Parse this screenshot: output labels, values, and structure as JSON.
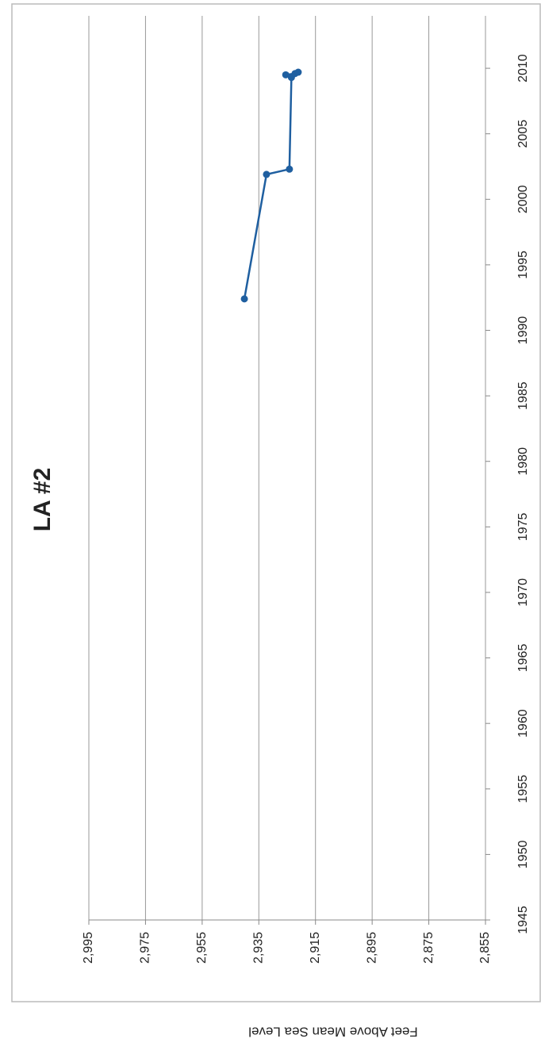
{
  "chart_data": {
    "type": "line",
    "title": "LA #2",
    "y_label": "Feet Above Mean Sea Level",
    "x": [
      1992.4,
      2001.9,
      2002.3,
      2009.3,
      2009.5,
      2009.6,
      2009.7
    ],
    "series": [
      {
        "name": "LA #2",
        "color": "#1f5fa0",
        "values": [
          2940.1,
          2932.3,
          2924.2,
          2923.5,
          2925.5,
          2922.2,
          2921.1
        ]
      }
    ],
    "xlim": [
      1945,
      2014
    ],
    "xticks": [
      1945,
      1950,
      1955,
      1960,
      1965,
      1970,
      1975,
      1980,
      1985,
      1990,
      1995,
      2000,
      2005,
      2010
    ],
    "ylim": [
      2855,
      2995
    ],
    "yticks": [
      {
        "value": 2995,
        "label": "2,995"
      },
      {
        "value": 2975,
        "label": "2,975"
      },
      {
        "value": 2955,
        "label": "2,955"
      },
      {
        "value": 2935,
        "label": "2,935"
      },
      {
        "value": 2915,
        "label": "2,915"
      },
      {
        "value": 2895,
        "label": "2,895"
      },
      {
        "value": 2875,
        "label": "2,875"
      },
      {
        "value": 2855,
        "label": "2,855"
      }
    ],
    "grid": true
  }
}
